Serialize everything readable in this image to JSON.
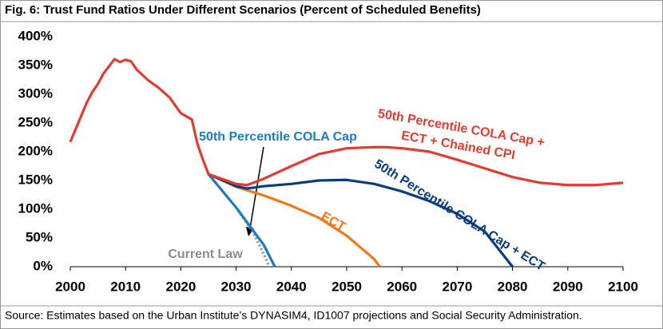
{
  "chart_data": {
    "type": "line",
    "title": "Fig. 6: Trust Fund Ratios Under Different Scenarios (Percent of Scheduled Benefits)",
    "source": "Source: Estimates based on the Urban Institute’s DYNASIM4, ID1007 projections and Social Security Administration.",
    "xlim": [
      2000,
      2100
    ],
    "xticks": [
      2000,
      2010,
      2020,
      2030,
      2040,
      2050,
      2060,
      2070,
      2080,
      2090,
      2100
    ],
    "ylim": [
      0,
      400
    ],
    "yticks": [
      {
        "value": 0,
        "label": "0%"
      },
      {
        "value": 50,
        "label": "50%"
      },
      {
        "value": 100,
        "label": "100%"
      },
      {
        "value": 150,
        "label": "150%"
      },
      {
        "value": 200,
        "label": "200%"
      },
      {
        "value": 250,
        "label": "250%"
      },
      {
        "value": 300,
        "label": "300%"
      },
      {
        "value": 350,
        "label": "350%"
      },
      {
        "value": 400,
        "label": "400%"
      }
    ],
    "series": [
      {
        "name": "50th Percentile COLA Cap + ECT + Chained CPI",
        "color": "#e03c31",
        "style": "solid",
        "x": [
          2000,
          2003,
          2004,
          2005,
          2006,
          2008,
          2009,
          2010,
          2011,
          2012,
          2014,
          2016,
          2018,
          2020,
          2022,
          2023,
          2024,
          2025,
          2030,
          2032,
          2035,
          2040,
          2045,
          2050,
          2055,
          2057,
          2060,
          2065,
          2070,
          2075,
          2080,
          2085,
          2090,
          2095,
          2100
        ],
        "values": [
          217,
          286,
          304,
          318,
          336,
          361,
          356,
          360,
          357,
          343,
          325,
          311,
          294,
          267,
          256,
          214,
          186,
          161,
          144,
          142,
          153,
          175,
          196,
          206,
          208,
          208,
          206,
          200,
          186,
          171,
          156,
          146,
          142,
          142,
          146
        ]
      },
      {
        "name": "50th Percentile COLA Cap + ECT",
        "color": "#0b3c7d",
        "style": "solid",
        "x": [
          2025,
          2030,
          2032,
          2035,
          2040,
          2045,
          2050,
          2055,
          2060,
          2065,
          2070,
          2075,
          2080
        ],
        "values": [
          161,
          140,
          136,
          140,
          144,
          150,
          151,
          144,
          131,
          114,
          92,
          61,
          0
        ]
      },
      {
        "name": "ECT",
        "color": "#ec7a1c",
        "style": "solid",
        "x": [
          2025,
          2030,
          2035,
          2040,
          2045,
          2050,
          2055,
          2056
        ],
        "values": [
          161,
          139,
          124,
          106,
          85,
          54,
          13,
          0
        ]
      },
      {
        "name": "50th Percentile COLA Cap",
        "color": "#1f7bbf",
        "style": "solid",
        "x": [
          2025,
          2030,
          2035,
          2037
        ],
        "values": [
          161,
          103,
          38,
          0
        ]
      },
      {
        "name": "Current Law",
        "color": "#8c8c8c",
        "style": "dotted",
        "x": [
          2030,
          2033,
          2035,
          2036
        ],
        "values": [
          103,
          61,
          22,
          0
        ]
      }
    ]
  }
}
